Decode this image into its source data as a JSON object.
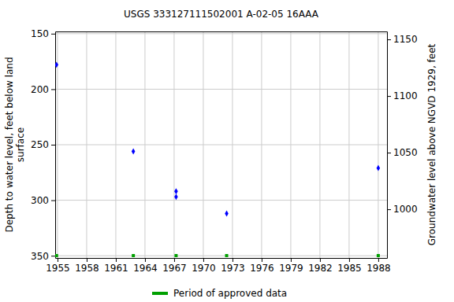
{
  "chart_data": {
    "type": "scatter",
    "title": "USGS 333127111502001 A-02-05 16AAA",
    "ylabel": [
      "Depth to water level, feet below land",
      "surface"
    ],
    "y2label": "Groundwater level above NGVD 1929, feet",
    "x": [
      1954.9,
      1962.8,
      1967.2,
      1967.2,
      1972.4,
      1988.0
    ],
    "values": [
      178,
      256,
      292,
      297,
      312,
      271
    ],
    "color": "#0000ff",
    "marker": "diamond",
    "xlim": [
      1954.76,
      1988.9
    ],
    "xticks": [
      1955,
      1958,
      1961,
      1964,
      1967,
      1970,
      1973,
      1976,
      1979,
      1982,
      1985,
      1988
    ],
    "ylim": [
      148,
      352
    ],
    "yticks": [
      150,
      200,
      250,
      300,
      350
    ],
    "y2lim": [
      957,
      1157
    ],
    "y2ticks": [
      1000,
      1050,
      1100,
      1150
    ],
    "grid": true,
    "approved_periods": {
      "name": "Period of approved data",
      "color": "#00a000",
      "marker": "square",
      "x": [
        1954.9,
        1962.8,
        1967.2,
        1972.4,
        1988.0
      ]
    },
    "legend": "bottom"
  }
}
